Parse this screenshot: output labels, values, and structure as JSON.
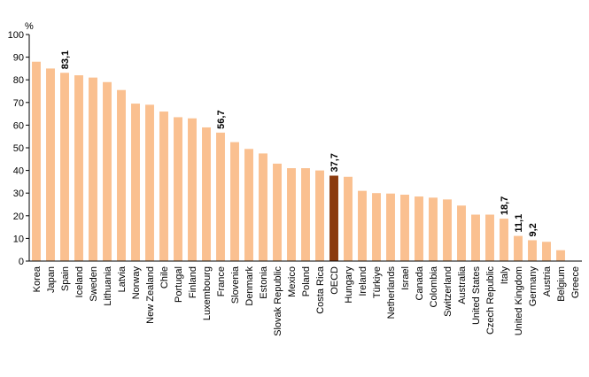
{
  "chart_data": {
    "type": "bar",
    "ylabel": "%",
    "ylim": [
      0,
      100
    ],
    "yticks": [
      0,
      10,
      20,
      30,
      40,
      50,
      60,
      70,
      80,
      90,
      100
    ],
    "grid": false,
    "legend": "none",
    "bar_color": "#FAC090",
    "highlight_color": "#8B3A0E",
    "highlight_category": "OECD",
    "categories": [
      "Korea",
      "Japan",
      "Spain",
      "Iceland",
      "Sweden",
      "Lithuania",
      "Latvia",
      "Norway",
      "New Zealand",
      "Chile",
      "Portugal",
      "Finland",
      "Luxembourg",
      "France",
      "Slovenia",
      "Denmark",
      "Estonia",
      "Slovak Republic",
      "Mexico",
      "Poland",
      "Costa Rica",
      "OECD",
      "Hungary",
      "Ireland",
      "Türkiye",
      "Netherlands",
      "Israel",
      "Canada",
      "Colombia",
      "Switzerland",
      "Australia",
      "United States",
      "Czech Republic",
      "Italy",
      "United Kingdom",
      "Germany",
      "Austria",
      "Belgium",
      "Greece"
    ],
    "values": [
      88.0,
      85.0,
      83.1,
      82.0,
      81.0,
      79.0,
      75.5,
      69.5,
      69.0,
      66.0,
      63.5,
      63.0,
      59.0,
      56.7,
      52.5,
      49.5,
      47.5,
      43.0,
      41.0,
      41.0,
      40.0,
      37.7,
      37.2,
      31.0,
      30.0,
      29.8,
      29.3,
      28.5,
      28.0,
      27.2,
      24.5,
      20.5,
      20.5,
      18.7,
      11.1,
      9.2,
      8.5,
      4.8,
      0
    ],
    "data_labels": [
      {
        "category": "Spain",
        "text": "83,1"
      },
      {
        "category": "France",
        "text": "56,7"
      },
      {
        "category": "OECD",
        "text": "37,7"
      },
      {
        "category": "Italy",
        "text": "18,7"
      },
      {
        "category": "United Kingdom",
        "text": "11,1"
      },
      {
        "category": "Germany",
        "text": "9,2"
      }
    ]
  }
}
